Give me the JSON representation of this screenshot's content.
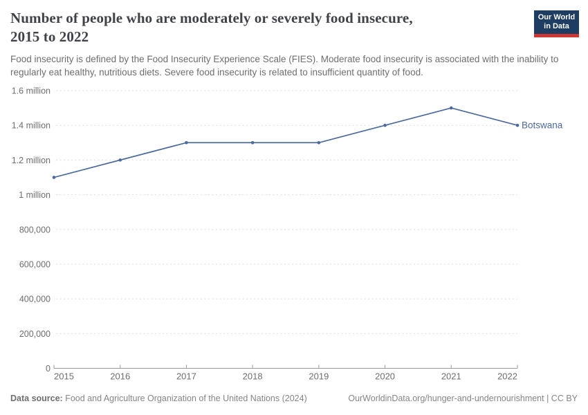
{
  "header": {
    "title_lines": [
      "Number of people who are moderately or severely food insecure,",
      "2015 to 2022"
    ],
    "subtitle": "Food insecurity is defined by the Food Insecurity Experience Scale (FIES). Moderate food insecurity is associated with the inability to regularly eat healthy, nutritious diets. Severe food insecurity is related to insufficient quantity of food.",
    "logo": {
      "line1": "Our World",
      "line2": "in Data",
      "bg_color": "#1d3d63",
      "bar_color": "#cf3734"
    }
  },
  "chart_data": {
    "type": "line",
    "title": "Number of people who are moderately or severely food insecure, 2015 to 2022",
    "x": [
      "2015",
      "2016",
      "2017",
      "2018",
      "2019",
      "2020",
      "2021",
      "2022"
    ],
    "series": [
      {
        "name": "Botswana",
        "color": "#4c6a9c",
        "values": [
          1100000,
          1200000,
          1300000,
          1300000,
          1300000,
          1400000,
          1500000,
          1400000
        ]
      }
    ],
    "ylim": [
      0,
      1600000
    ],
    "ytick_interval": 200000,
    "ytick_labels": [
      "0",
      "200,000",
      "400,000",
      "600,000",
      "800,000",
      "1 million",
      "1.2 million",
      "1.4 million",
      "1.6 million"
    ],
    "grid": "horizontal-dashed",
    "legend_position": "end-of-line",
    "colors": {
      "grid": "#dcdcdc",
      "axis": "#9a9a9a",
      "tick_label": "#6e6e6e"
    }
  },
  "footer": {
    "datasource_label": "Data source:",
    "datasource_text": "Food and Agriculture Organization of the United Nations (2024)",
    "link_text": "OurWorldinData.org/hunger-and-undernourishment | CC BY"
  }
}
